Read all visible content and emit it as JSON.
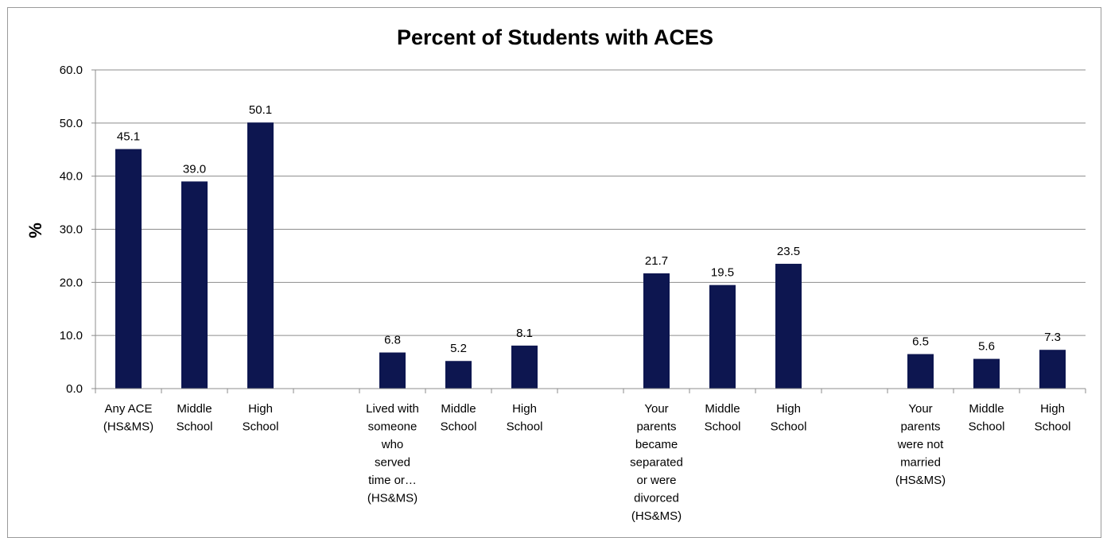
{
  "chart_data": {
    "type": "bar",
    "title": "Percent of Students with ACES",
    "xlabel": "",
    "ylabel": "%",
    "ylim": [
      0,
      60
    ],
    "yticks": [
      "0.0",
      "10.0",
      "20.0",
      "30.0",
      "40.0",
      "50.0",
      "60.0"
    ],
    "grid": true,
    "legend": "none",
    "bar_color": "#0d1650",
    "categories": [
      [
        "Any ACE",
        "(HS&MS)"
      ],
      [
        "Middle",
        "School"
      ],
      [
        "High",
        "School"
      ],
      [],
      [
        "Lived with",
        "someone",
        "who",
        "served",
        "time or…",
        "(HS&MS)"
      ],
      [
        "Middle",
        "School"
      ],
      [
        "High",
        "School"
      ],
      [],
      [
        "Your",
        "parents",
        "became",
        "separated",
        "or were",
        "divorced",
        "(HS&MS)"
      ],
      [
        "Middle",
        "School"
      ],
      [
        "High",
        "School"
      ],
      [],
      [
        "Your",
        "parents",
        "were not",
        "married",
        "(HS&MS)"
      ],
      [
        "Middle",
        "School"
      ],
      [
        "High",
        "School"
      ]
    ],
    "values": [
      45.1,
      39.0,
      50.1,
      null,
      6.8,
      5.2,
      8.1,
      null,
      21.7,
      19.5,
      23.5,
      null,
      6.5,
      5.6,
      7.3
    ],
    "data_labels": [
      "45.1",
      "39.0",
      "50.1",
      "",
      "6.8",
      "5.2",
      "8.1",
      "",
      "21.7",
      "19.5",
      "23.5",
      "",
      "6.5",
      "5.6",
      "7.3"
    ]
  }
}
